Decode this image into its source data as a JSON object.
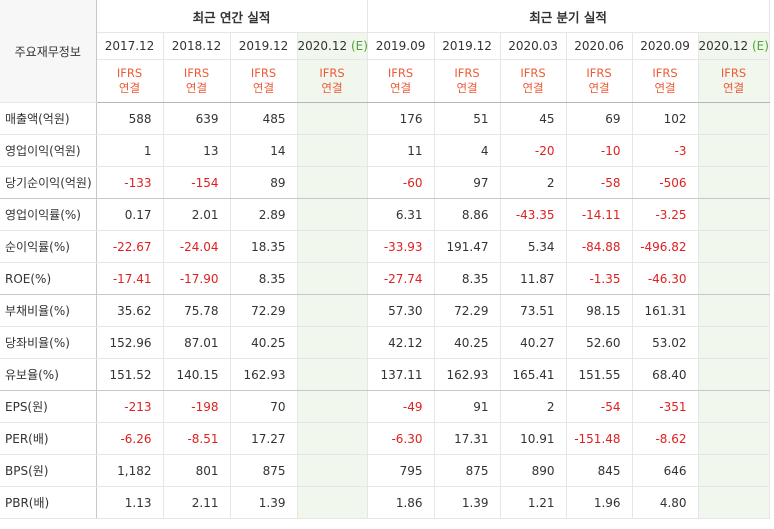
{
  "header": {
    "row_label": "주요재무정보",
    "annual_title": "최근 연간 실적",
    "quarterly_title": "최근 분기 실적",
    "annual_periods": [
      "2017.12",
      "2018.12",
      "2019.12",
      "2020.12"
    ],
    "quarterly_periods": [
      "2019.09",
      "2019.12",
      "2020.03",
      "2020.06",
      "2020.09",
      "2020.12"
    ],
    "estimate_tag": "(E)",
    "ifrs_line1": "IFRS",
    "ifrs_line2": "연결"
  },
  "rows": [
    {
      "label": "매출액(억원)",
      "annual": [
        "588",
        "639",
        "485",
        ""
      ],
      "quarterly": [
        "176",
        "51",
        "45",
        "69",
        "102",
        ""
      ]
    },
    {
      "label": "영업이익(억원)",
      "annual": [
        "1",
        "13",
        "14",
        ""
      ],
      "quarterly": [
        "11",
        "4",
        "-20",
        "-10",
        "-3",
        ""
      ]
    },
    {
      "label": "당기순이익(억원)",
      "annual": [
        "-133",
        "-154",
        "89",
        ""
      ],
      "quarterly": [
        "-60",
        "97",
        "2",
        "-58",
        "-506",
        ""
      ]
    },
    {
      "label": "영업이익률(%)",
      "annual": [
        "0.17",
        "2.01",
        "2.89",
        ""
      ],
      "quarterly": [
        "6.31",
        "8.86",
        "-43.35",
        "-14.11",
        "-3.25",
        ""
      ]
    },
    {
      "label": "순이익률(%)",
      "annual": [
        "-22.67",
        "-24.04",
        "18.35",
        ""
      ],
      "quarterly": [
        "-33.93",
        "191.47",
        "5.34",
        "-84.88",
        "-496.82",
        ""
      ]
    },
    {
      "label": "ROE(%)",
      "annual": [
        "-17.41",
        "-17.90",
        "8.35",
        ""
      ],
      "quarterly": [
        "-27.74",
        "8.35",
        "11.87",
        "-1.35",
        "-46.30",
        ""
      ]
    },
    {
      "label": "부채비율(%)",
      "annual": [
        "35.62",
        "75.78",
        "72.29",
        ""
      ],
      "quarterly": [
        "57.30",
        "72.29",
        "73.51",
        "98.15",
        "161.31",
        ""
      ]
    },
    {
      "label": "당좌비율(%)",
      "annual": [
        "152.96",
        "87.01",
        "40.25",
        ""
      ],
      "quarterly": [
        "42.12",
        "40.25",
        "40.27",
        "52.60",
        "53.02",
        ""
      ]
    },
    {
      "label": "유보율(%)",
      "annual": [
        "151.52",
        "140.15",
        "162.93",
        ""
      ],
      "quarterly": [
        "137.11",
        "162.93",
        "165.41",
        "151.55",
        "68.40",
        ""
      ]
    },
    {
      "label": "EPS(원)",
      "annual": [
        "-213",
        "-198",
        "70",
        ""
      ],
      "quarterly": [
        "-49",
        "91",
        "2",
        "-54",
        "-351",
        ""
      ]
    },
    {
      "label": "PER(배)",
      "annual": [
        "-6.26",
        "-8.51",
        "17.27",
        ""
      ],
      "quarterly": [
        "-6.30",
        "17.31",
        "10.91",
        "-151.48",
        "-8.62",
        ""
      ]
    },
    {
      "label": "BPS(원)",
      "annual": [
        "1,182",
        "801",
        "875",
        ""
      ],
      "quarterly": [
        "795",
        "875",
        "890",
        "845",
        "646",
        ""
      ]
    },
    {
      "label": "PBR(배)",
      "annual": [
        "1.13",
        "2.11",
        "1.39",
        ""
      ],
      "quarterly": [
        "1.86",
        "1.39",
        "1.21",
        "1.96",
        "4.80",
        ""
      ]
    }
  ],
  "colors": {
    "negative": "#e02020",
    "ifrs": "#ec5b36",
    "estimate_bg": "#f2f7ee",
    "estimate_tag": "#4ca436"
  }
}
